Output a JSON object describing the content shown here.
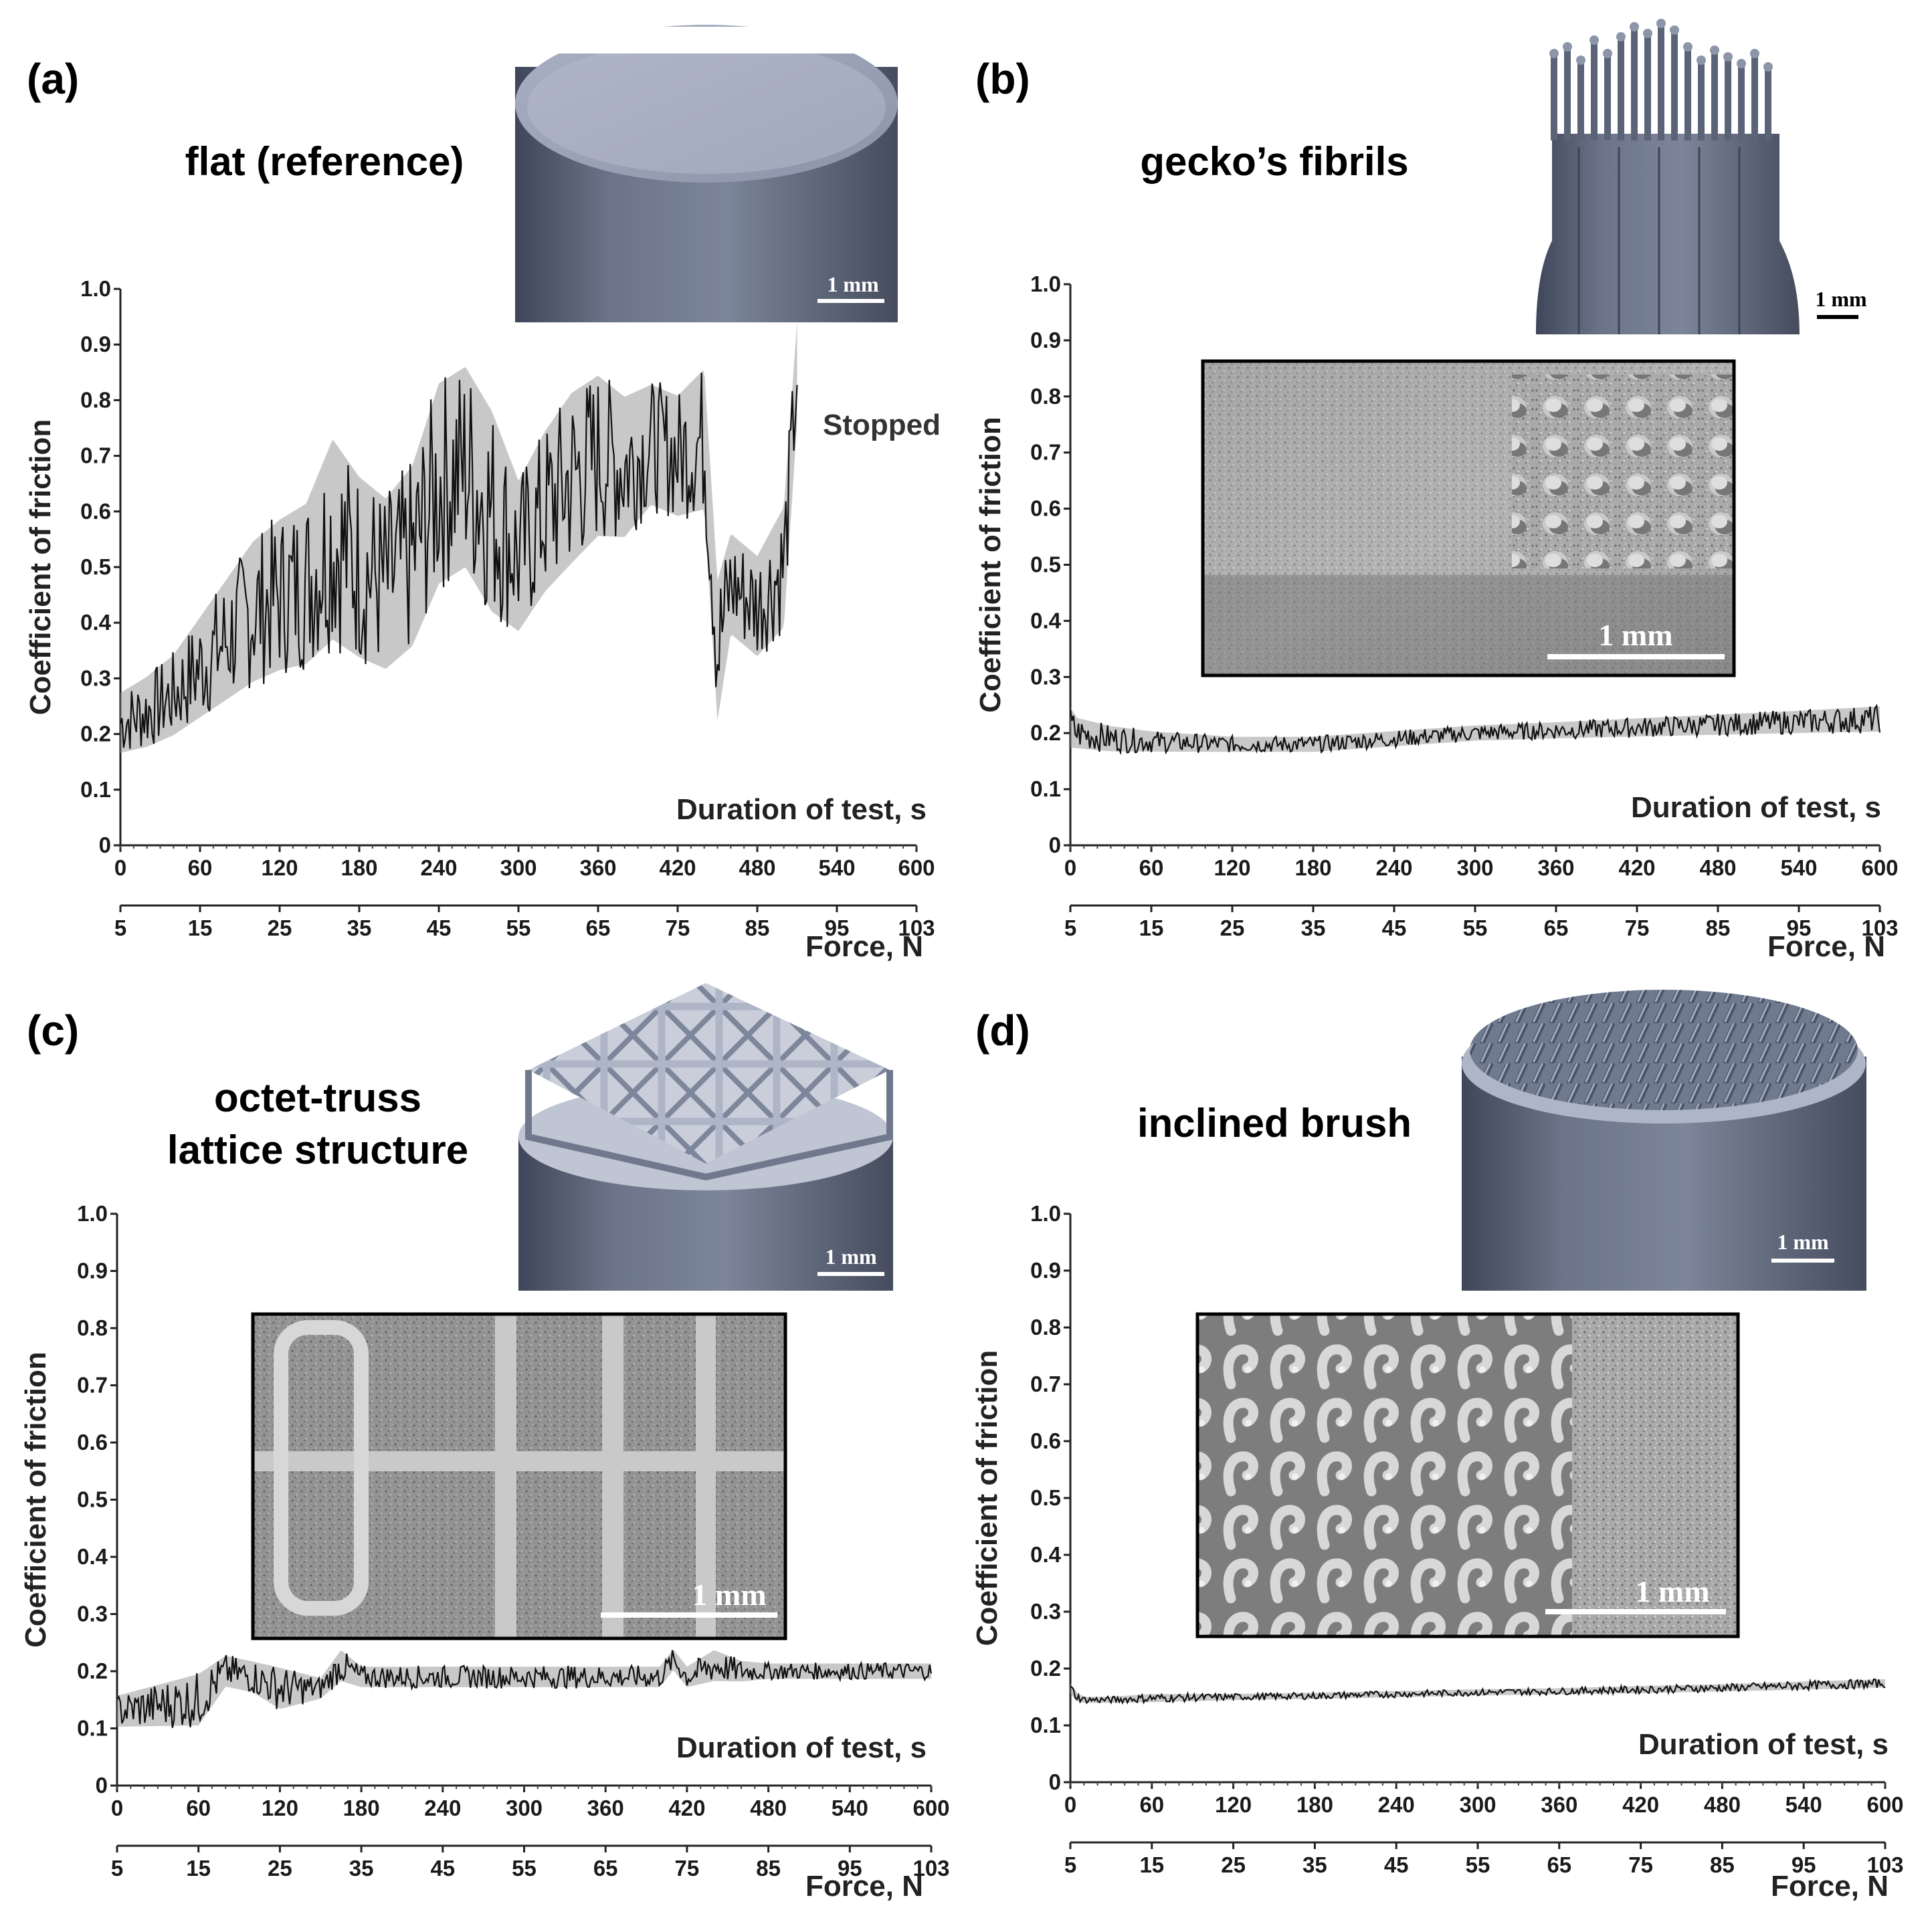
{
  "chart_data": [
    {
      "panel": "(a)",
      "type": "line",
      "caption": [
        "flat (reference)"
      ],
      "ylabel": "Coefficient of friction",
      "xlabel": "Duration of test, s",
      "x2label": "Force, N",
      "ylim": [
        0,
        1.0
      ],
      "xlim": [
        0,
        600
      ],
      "yticks": [
        "0",
        "0.1",
        "0.2",
        "0.3",
        "0.4",
        "0.5",
        "0.6",
        "0.7",
        "0.8",
        "0.9",
        "1.0"
      ],
      "xticks": [
        "0",
        "60",
        "120",
        "180",
        "240",
        "300",
        "360",
        "420",
        "480",
        "540",
        "600"
      ],
      "x2ticks": [
        "5",
        "15",
        "25",
        "35",
        "45",
        "55",
        "65",
        "75",
        "85",
        "95",
        "103"
      ],
      "annotation": "Stopped",
      "scale_bar": "1 mm",
      "series": [
        {
          "x": [
            0,
            20,
            40,
            60,
            80,
            100,
            120,
            140,
            160,
            180,
            200,
            220,
            240,
            260,
            280,
            300,
            320,
            340,
            360,
            380,
            400,
            420,
            440,
            450,
            460,
            480,
            500,
            510
          ],
          "y": [
            0.22,
            0.24,
            0.27,
            0.32,
            0.37,
            0.42,
            0.45,
            0.47,
            0.55,
            0.5,
            0.47,
            0.52,
            0.65,
            0.68,
            0.6,
            0.52,
            0.6,
            0.66,
            0.7,
            0.68,
            0.72,
            0.7,
            0.73,
            0.35,
            0.47,
            0.43,
            0.5,
            0.85
          ],
          "amplitude": [
            0.06,
            0.07,
            0.08,
            0.1,
            0.12,
            0.14,
            0.15,
            0.16,
            0.2,
            0.18,
            0.17,
            0.18,
            0.2,
            0.2,
            0.2,
            0.15,
            0.16,
            0.17,
            0.16,
            0.14,
            0.12,
            0.12,
            0.14,
            0.14,
            0.1,
            0.1,
            0.12,
            0.1
          ]
        }
      ]
    },
    {
      "panel": "(b)",
      "type": "line",
      "caption": [
        "gecko’s fibrils"
      ],
      "ylabel": "Coefficient of friction",
      "xlabel": "Duration of test, s",
      "x2label": "Force, N",
      "ylim": [
        0,
        1.0
      ],
      "xlim": [
        0,
        600
      ],
      "yticks": [
        "0",
        "0.1",
        "0.2",
        "0.3",
        "0.4",
        "0.5",
        "0.6",
        "0.7",
        "0.8",
        "0.9",
        "1.0"
      ],
      "xticks": [
        "0",
        "60",
        "120",
        "180",
        "240",
        "300",
        "360",
        "420",
        "480",
        "540",
        "600"
      ],
      "x2ticks": [
        "5",
        "15",
        "25",
        "35",
        "45",
        "55",
        "65",
        "75",
        "85",
        "95",
        "103"
      ],
      "scale_bar": "1 mm",
      "sem_scale_bar": "1 mm",
      "series": [
        {
          "x": [
            0,
            5,
            30,
            60,
            120,
            180,
            240,
            300,
            360,
            420,
            480,
            540,
            600
          ],
          "y": [
            0.21,
            0.2,
            0.19,
            0.185,
            0.18,
            0.18,
            0.19,
            0.2,
            0.205,
            0.21,
            0.215,
            0.22,
            0.225
          ],
          "amplitude": [
            0.04,
            0.03,
            0.025,
            0.02,
            0.015,
            0.015,
            0.015,
            0.015,
            0.016,
            0.018,
            0.02,
            0.022,
            0.025
          ]
        }
      ]
    },
    {
      "panel": "(c)",
      "type": "line",
      "caption": [
        "octet-truss",
        "lattice structure"
      ],
      "ylabel": "Coefficient of friction",
      "xlabel": "Duration of test, s",
      "x2label": "Force, N",
      "ylim": [
        0,
        1.0
      ],
      "xlim": [
        0,
        600
      ],
      "yticks": [
        "0",
        "0.1",
        "0.2",
        "0.3",
        "0.4",
        "0.5",
        "0.6",
        "0.7",
        "0.8",
        "0.9",
        "1.0"
      ],
      "xticks": [
        "0",
        "60",
        "120",
        "180",
        "240",
        "300",
        "360",
        "420",
        "480",
        "540",
        "600"
      ],
      "x2ticks": [
        "5",
        "15",
        "25",
        "35",
        "45",
        "55",
        "65",
        "75",
        "85",
        "95",
        "103"
      ],
      "scale_bar": "1 mm",
      "sem_scale_bar": "1 mm",
      "series": [
        {
          "x": [
            0,
            30,
            60,
            80,
            100,
            120,
            150,
            165,
            180,
            240,
            300,
            360,
            400,
            410,
            420,
            440,
            460,
            480,
            540,
            600
          ],
          "y": [
            0.13,
            0.14,
            0.15,
            0.2,
            0.19,
            0.17,
            0.17,
            0.21,
            0.19,
            0.19,
            0.19,
            0.19,
            0.19,
            0.22,
            0.19,
            0.21,
            0.2,
            0.2,
            0.2,
            0.2
          ],
          "amplitude": [
            0.03,
            0.04,
            0.05,
            0.03,
            0.03,
            0.04,
            0.02,
            0.03,
            0.02,
            0.02,
            0.02,
            0.02,
            0.02,
            0.02,
            0.02,
            0.03,
            0.02,
            0.015,
            0.015,
            0.015
          ]
        }
      ]
    },
    {
      "panel": "(d)",
      "type": "line",
      "caption": [
        "inclined brush"
      ],
      "ylabel": "Coefficient of friction",
      "xlabel": "Duration of test, s",
      "x2label": "Force, N",
      "ylim": [
        0,
        1.0
      ],
      "xlim": [
        0,
        600
      ],
      "yticks": [
        "0",
        "0.1",
        "0.2",
        "0.3",
        "0.4",
        "0.5",
        "0.6",
        "0.7",
        "0.8",
        "0.9",
        "1.0"
      ],
      "xticks": [
        "0",
        "60",
        "120",
        "180",
        "240",
        "300",
        "360",
        "420",
        "480",
        "540",
        "600"
      ],
      "x2ticks": [
        "5",
        "15",
        "25",
        "35",
        "45",
        "55",
        "65",
        "75",
        "85",
        "95",
        "103"
      ],
      "scale_bar": "1 mm",
      "sem_scale_bar": "1 mm",
      "series": [
        {
          "x": [
            0,
            5,
            10,
            30,
            60,
            120,
            180,
            240,
            300,
            360,
            420,
            480,
            540,
            600
          ],
          "y": [
            0.165,
            0.15,
            0.145,
            0.145,
            0.148,
            0.15,
            0.152,
            0.155,
            0.158,
            0.16,
            0.163,
            0.166,
            0.17,
            0.174
          ],
          "amplitude": [
            0.01,
            0.008,
            0.006,
            0.006,
            0.008,
            0.006,
            0.006,
            0.006,
            0.006,
            0.006,
            0.007,
            0.007,
            0.008,
            0.008
          ]
        }
      ]
    }
  ]
}
